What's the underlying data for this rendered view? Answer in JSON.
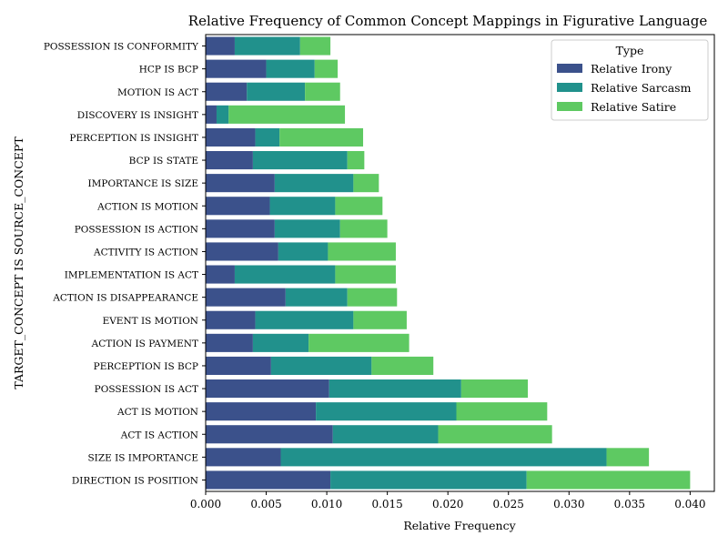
{
  "chart_data": {
    "type": "bar",
    "orientation": "horizontal",
    "stacked": true,
    "title": "Relative Frequency of Common Concept Mappings in Figurative Language",
    "xlabel": "Relative Frequency",
    "ylabel": "TARGET_CONCEPT IS SOURCE_CONCEPT",
    "xlim": [
      0,
      0.042
    ],
    "xticks": [
      "0.000",
      "0.005",
      "0.010",
      "0.015",
      "0.020",
      "0.025",
      "0.030",
      "0.035",
      "0.040"
    ],
    "legend_title": "Type",
    "legend_position": "top-right",
    "grid": false,
    "categories": [
      "DIRECTION IS POSITION",
      "SIZE IS IMPORTANCE",
      "ACT IS ACTION",
      "ACT IS MOTION",
      "POSSESSION IS ACT",
      "PERCEPTION IS BCP",
      "ACTION IS PAYMENT",
      "EVENT IS MOTION",
      "ACTION IS DISAPPEARANCE",
      "IMPLEMENTATION IS ACT",
      "ACTIVITY IS ACTION",
      "POSSESSION IS ACTION",
      "ACTION IS MOTION",
      "IMPORTANCE IS SIZE",
      "BCP IS STATE",
      "PERCEPTION IS INSIGHT",
      "DISCOVERY IS INSIGHT",
      "MOTION IS ACT",
      "HCP IS BCP",
      "POSSESSION IS CONFORMITY"
    ],
    "series": [
      {
        "name": "Relative Irony",
        "color": "#3b518b",
        "values": [
          0.0103,
          0.0062,
          0.0105,
          0.0091,
          0.0102,
          0.0054,
          0.0039,
          0.0041,
          0.0066,
          0.0024,
          0.006,
          0.0057,
          0.0053,
          0.0057,
          0.0039,
          0.0041,
          0.0009,
          0.0034,
          0.005,
          0.0024
        ]
      },
      {
        "name": "Relative Sarcasm",
        "color": "#21918c",
        "values": [
          0.0162,
          0.0269,
          0.0087,
          0.0116,
          0.0109,
          0.0083,
          0.0046,
          0.0081,
          0.0051,
          0.0083,
          0.0041,
          0.0054,
          0.0054,
          0.0065,
          0.0078,
          0.002,
          0.001,
          0.0048,
          0.004,
          0.0054
        ]
      },
      {
        "name": "Relative Satire",
        "color": "#5ec962",
        "values": [
          0.0135,
          0.0035,
          0.0094,
          0.0075,
          0.0055,
          0.0051,
          0.0083,
          0.0044,
          0.0041,
          0.005,
          0.0056,
          0.0039,
          0.0039,
          0.0021,
          0.0014,
          0.0069,
          0.0096,
          0.0029,
          0.0019,
          0.0025
        ]
      }
    ]
  }
}
